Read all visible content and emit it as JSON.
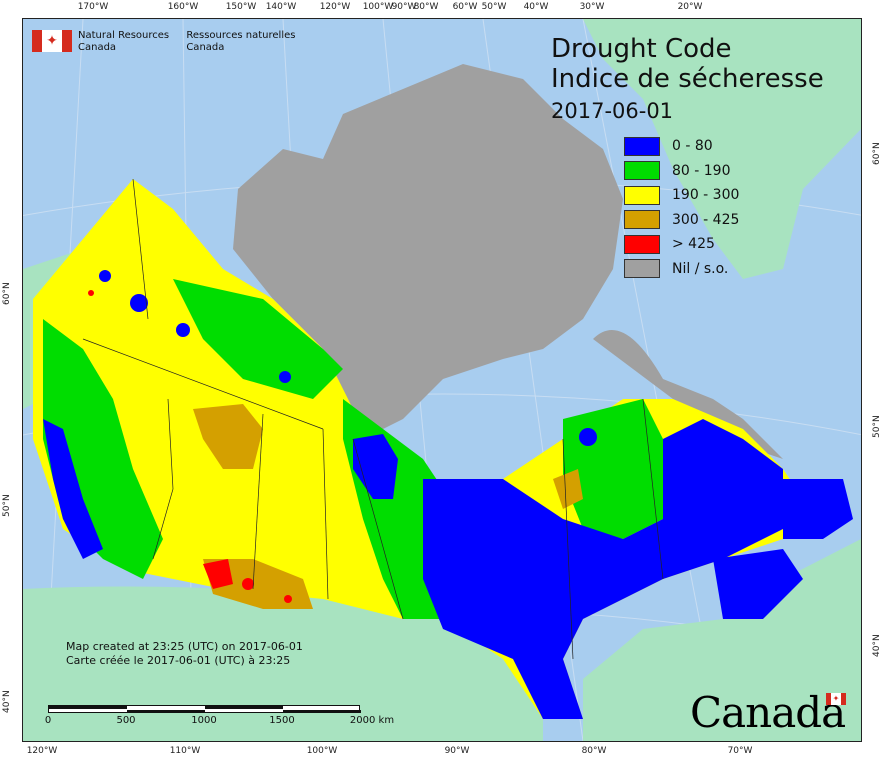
{
  "header": {
    "org_en_1": "Natural Resources",
    "org_en_2": "Canada",
    "org_fr_1": "Ressources naturelles",
    "org_fr_2": "Canada"
  },
  "title": {
    "en": "Drought Code",
    "fr": "Indice de sécheresse",
    "date": "2017-06-01"
  },
  "legend": [
    {
      "label": "0 - 80",
      "color": "#0000ff"
    },
    {
      "label": "80 - 190",
      "color": "#00dd00"
    },
    {
      "label": "190 - 300",
      "color": "#ffff00"
    },
    {
      "label": "300 - 425",
      "color": "#d4a000"
    },
    {
      "label": "> 425",
      "color": "#ff0000"
    },
    {
      "label": "Nil / s.o.",
      "color": "#a0a0a0"
    }
  ],
  "credit": {
    "en": "Map created at 23:25 (UTC) on 2017-06-01",
    "fr": "Carte créée le 2017-06-01 (UTC) à 23:25"
  },
  "scale": {
    "labels": [
      "0",
      "500",
      "1000",
      "1500",
      "2000  km"
    ]
  },
  "graticule": {
    "top": [
      "170°W",
      "160°W",
      "150°W",
      "140°W",
      "120°W",
      "100°W",
      "90°W",
      "80°W",
      "60°W",
      "50°W",
      "40°W",
      "30°W",
      "20°W"
    ],
    "bottom": [
      "120°W",
      "110°W",
      "100°W",
      "90°W",
      "80°W",
      "70°W"
    ],
    "left": [
      "60°N",
      "50°N",
      "40°N"
    ],
    "right": [
      "60°N",
      "50°N",
      "40°N"
    ]
  },
  "wordmark": "Canada",
  "colors": {
    "ocean": "#a8cdef",
    "land_other": "#a8e3c0",
    "nil": "#a0a0a0",
    "border": "#222222"
  }
}
